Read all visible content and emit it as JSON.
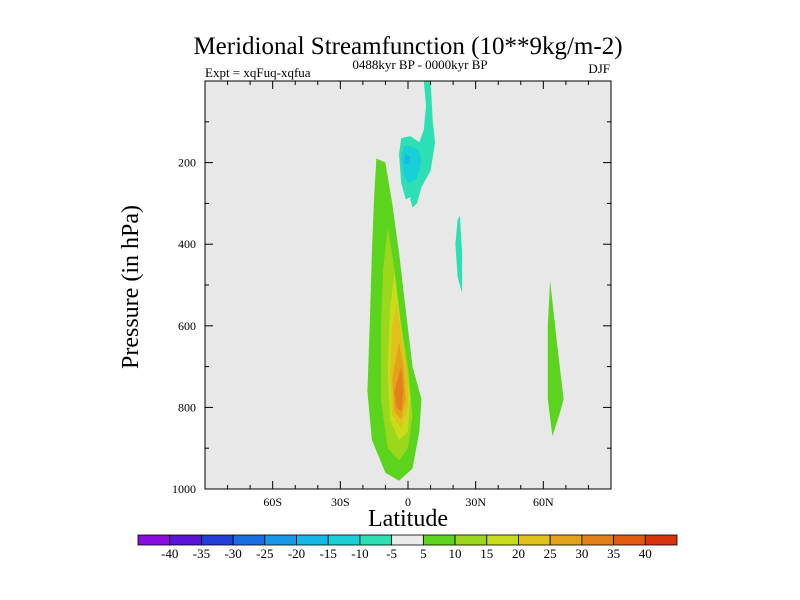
{
  "chart_data": {
    "type": "heatmap",
    "title": "Meridional Streamfunction (10**9kg/m-2)",
    "subtitle_left": "Expt = xqFuq-xqfua",
    "subtitle_center": "0488kyr BP - 0000kyr BP",
    "subtitle_right": "DJF",
    "xlabel": "Latitude",
    "ylabel": "Pressure (in hPa)",
    "xlim": [
      -90,
      90
    ],
    "ylim": [
      0,
      1000
    ],
    "y_inverted": true,
    "x_ticks": [
      {
        "value": -60,
        "label": "60S"
      },
      {
        "value": -30,
        "label": "30S"
      },
      {
        "value": 0,
        "label": "0"
      },
      {
        "value": 30,
        "label": "30N"
      },
      {
        "value": 60,
        "label": "60N"
      }
    ],
    "y_ticks": [
      {
        "value": 200,
        "label": "200"
      },
      {
        "value": 400,
        "label": "400"
      },
      {
        "value": 600,
        "label": "600"
      },
      {
        "value": 800,
        "label": "800"
      },
      {
        "value": 1000,
        "label": "1000"
      }
    ],
    "colorbar": {
      "labels": [
        "-40",
        "-35",
        "-30",
        "-25",
        "-20",
        "-15",
        "-10",
        "-5",
        "5",
        "10",
        "15",
        "20",
        "25",
        "30",
        "35",
        "40"
      ],
      "colors": [
        "#8a0ee0",
        "#5a14d8",
        "#1f3fd6",
        "#1b6ee0",
        "#1a98e6",
        "#16b8e8",
        "#1ad0d8",
        "#2de0b4",
        "#ebebeb",
        "#5ad41c",
        "#9bd81c",
        "#c9dc1c",
        "#e0c21a",
        "#e2a21a",
        "#e2801a",
        "#e05a12",
        "#d83410"
      ]
    },
    "background_color": "#e8e8e8",
    "contours": [
      {
        "name": "sh-cell-10",
        "color": "#5ad41c",
        "points": [
          [
            -14,
            190
          ],
          [
            -10,
            200
          ],
          [
            -7,
            300
          ],
          [
            -4,
            420
          ],
          [
            -1,
            560
          ],
          [
            2,
            700
          ],
          [
            6,
            780
          ],
          [
            5,
            860
          ],
          [
            2,
            950
          ],
          [
            -4,
            980
          ],
          [
            -10,
            960
          ],
          [
            -16,
            880
          ],
          [
            -18,
            760
          ],
          [
            -17,
            600
          ],
          [
            -16,
            420
          ],
          [
            -15,
            280
          ]
        ]
      },
      {
        "name": "sh-cell-15",
        "color": "#9bd81c",
        "points": [
          [
            -9,
            360
          ],
          [
            -6,
            460
          ],
          [
            -3,
            600
          ],
          [
            0,
            700
          ],
          [
            2,
            820
          ],
          [
            0,
            900
          ],
          [
            -4,
            930
          ],
          [
            -9,
            900
          ],
          [
            -12,
            780
          ],
          [
            -12,
            600
          ],
          [
            -11,
            460
          ]
        ]
      },
      {
        "name": "sh-cell-20",
        "color": "#c9dc1c",
        "points": [
          [
            -6,
            470
          ],
          [
            -4,
            560
          ],
          [
            -1,
            680
          ],
          [
            1,
            780
          ],
          [
            0,
            860
          ],
          [
            -4,
            880
          ],
          [
            -8,
            830
          ],
          [
            -9,
            700
          ],
          [
            -8,
            560
          ]
        ]
      },
      {
        "name": "sh-cell-25",
        "color": "#e0c21a",
        "points": [
          [
            -5,
            540
          ],
          [
            -3,
            620
          ],
          [
            0,
            720
          ],
          [
            0,
            800
          ],
          [
            -3,
            850
          ],
          [
            -7,
            820
          ],
          [
            -8,
            720
          ],
          [
            -7,
            600
          ]
        ]
      },
      {
        "name": "sh-cell-30",
        "color": "#e2a21a",
        "points": [
          [
            -4,
            640
          ],
          [
            -2,
            700
          ],
          [
            -1,
            780
          ],
          [
            -3,
            830
          ],
          [
            -6,
            810
          ],
          [
            -7,
            730
          ]
        ]
      },
      {
        "name": "sh-cell-35",
        "color": "#e2801a",
        "points": [
          [
            -3,
            700
          ],
          [
            -2,
            760
          ],
          [
            -3,
            810
          ],
          [
            -5,
            800
          ],
          [
            -6,
            760
          ]
        ]
      },
      {
        "name": "upper-column-m5",
        "color": "#2de0b4",
        "points": [
          [
            7,
            0
          ],
          [
            10,
            0
          ],
          [
            11,
            100
          ],
          [
            12,
            150
          ],
          [
            10,
            220
          ],
          [
            6,
            260
          ],
          [
            3,
            280
          ],
          [
            -1,
            290
          ],
          [
            -3,
            250
          ],
          [
            -4,
            180
          ],
          [
            -3,
            140
          ],
          [
            1,
            135
          ],
          [
            5,
            150
          ],
          [
            7,
            120
          ],
          [
            8,
            60
          ]
        ]
      },
      {
        "name": "upper-core-m10",
        "color": "#1ad0d8",
        "points": [
          [
            -2,
            160
          ],
          [
            1,
            160
          ],
          [
            5,
            170
          ],
          [
            6,
            200
          ],
          [
            4,
            240
          ],
          [
            0,
            250
          ],
          [
            -2,
            230
          ],
          [
            -3,
            190
          ]
        ]
      },
      {
        "name": "upper-core-m15",
        "color": "#16b8e8",
        "points": [
          [
            -1,
            180
          ],
          [
            1,
            185
          ],
          [
            0,
            205
          ],
          [
            -2,
            200
          ]
        ]
      },
      {
        "name": "upper-branch-m5",
        "color": "#2de0b4",
        "points": [
          [
            3,
            240
          ],
          [
            6,
            260
          ],
          [
            4,
            300
          ],
          [
            2,
            310
          ],
          [
            1,
            290
          ]
        ]
      },
      {
        "name": "mid-strip-m5",
        "color": "#2de0b4",
        "points": [
          [
            23,
            330
          ],
          [
            24,
            420
          ],
          [
            24,
            520
          ],
          [
            22,
            480
          ],
          [
            21,
            400
          ],
          [
            22,
            340
          ]
        ]
      },
      {
        "name": "nh-cell-5",
        "color": "#5ad41c",
        "points": [
          [
            63,
            490
          ],
          [
            66,
            640
          ],
          [
            69,
            780
          ],
          [
            67,
            820
          ],
          [
            64,
            870
          ],
          [
            62,
            780
          ],
          [
            62,
            600
          ]
        ]
      }
    ]
  }
}
